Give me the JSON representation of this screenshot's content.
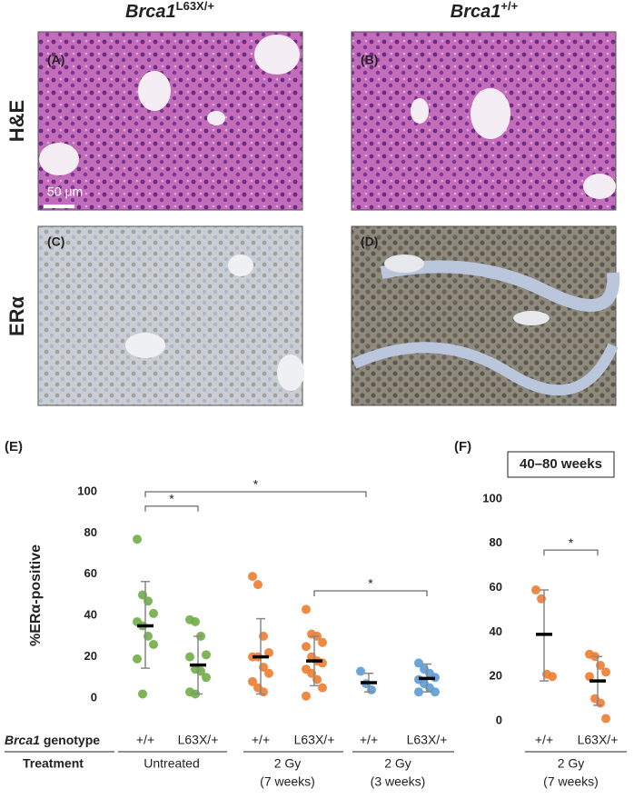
{
  "column_headers": [
    {
      "gene": "Brca1",
      "allele": "L63X/+"
    },
    {
      "gene": "Brca1",
      "allele": "+/+"
    }
  ],
  "row_labels": [
    "H&E",
    "ERα"
  ],
  "panels": [
    "(A)",
    "(B)",
    "(C)",
    "(D)"
  ],
  "scale_bar": "50 μm",
  "chart_data": [
    {
      "type": "dot",
      "panel_label": "(E)",
      "ylabel": "%ERα-positive",
      "ylim": [
        0,
        100
      ],
      "yticks": [
        0,
        20,
        40,
        60,
        80,
        100
      ],
      "genotype_label": {
        "gene": "Brca1",
        "text": "genotype"
      },
      "treatment_label": "Treatment",
      "treatments": [
        {
          "lines": [
            "Untreated"
          ],
          "groups": [
            {
              "category": "+/+",
              "color": "#70ad47",
              "values": [
                77,
                50,
                47,
                41,
                37,
                35,
                30,
                26,
                19,
                2
              ],
              "mean": 35,
              "sd_range": [
                14.5,
                56.5
              ]
            },
            {
              "category": "L63X/+",
              "color": "#70ad47",
              "values": [
                38,
                37,
                30,
                21,
                20,
                14,
                13,
                10,
                3,
                2
              ],
              "mean": 16,
              "sd_range": [
                2,
                30
              ]
            }
          ]
        },
        {
          "lines": [
            "2 Gy",
            "(7 weeks)"
          ],
          "groups": [
            {
              "category": "+/+",
              "color": "#ed7d31",
              "values": [
                59,
                55,
                30,
                22,
                20,
                20,
                15,
                12,
                8,
                5,
                3
              ],
              "mean": 20,
              "sd_range": [
                2,
                38.5
              ]
            },
            {
              "category": "L63X/+",
              "color": "#ed7d31",
              "values": [
                43,
                31,
                30,
                27,
                25,
                20,
                18,
                17,
                14,
                12,
                9,
                5,
                1
              ],
              "mean": 18,
              "sd_range": [
                6,
                30
              ]
            }
          ]
        },
        {
          "lines": [
            "2 Gy",
            "(3 weeks)"
          ],
          "groups": [
            {
              "category": "+/+",
              "color": "#5b9bd5",
              "values": [
                13,
                7,
                4
              ],
              "mean": 7.5,
              "sd_range": [
                3,
                12
              ]
            },
            {
              "category": "L63X/+",
              "color": "#5b9bd5",
              "values": [
                17,
                14,
                12,
                10,
                9,
                7,
                5,
                3,
                3
              ],
              "mean": 9.5,
              "sd_range": [
                3,
                16.5
              ]
            }
          ]
        }
      ],
      "significance": [
        {
          "label": "*",
          "level": 93
        },
        {
          "label": "*",
          "level": 100
        },
        {
          "label": "*",
          "level": 52
        }
      ]
    },
    {
      "type": "dot",
      "panel_label": "(F)",
      "title": "40–80 weeks",
      "ylim": [
        0,
        100
      ],
      "yticks": [
        0,
        20,
        40,
        60,
        80,
        100
      ],
      "treatments": [
        {
          "lines": [
            "2 Gy",
            "(7 weeks)"
          ],
          "groups": [
            {
              "category": "+/+",
              "color": "#ed7d31",
              "values": [
                59,
                55,
                21,
                20
              ],
              "mean": 39,
              "sd_range": [
                18,
                59
              ]
            },
            {
              "category": "L63X/+",
              "color": "#ed7d31",
              "values": [
                30,
                29,
                25,
                22,
                20,
                10,
                8,
                1
              ],
              "mean": 18,
              "sd_range": [
                7,
                29
              ]
            }
          ]
        }
      ],
      "significance": [
        {
          "label": "*",
          "level": 77
        }
      ]
    }
  ]
}
